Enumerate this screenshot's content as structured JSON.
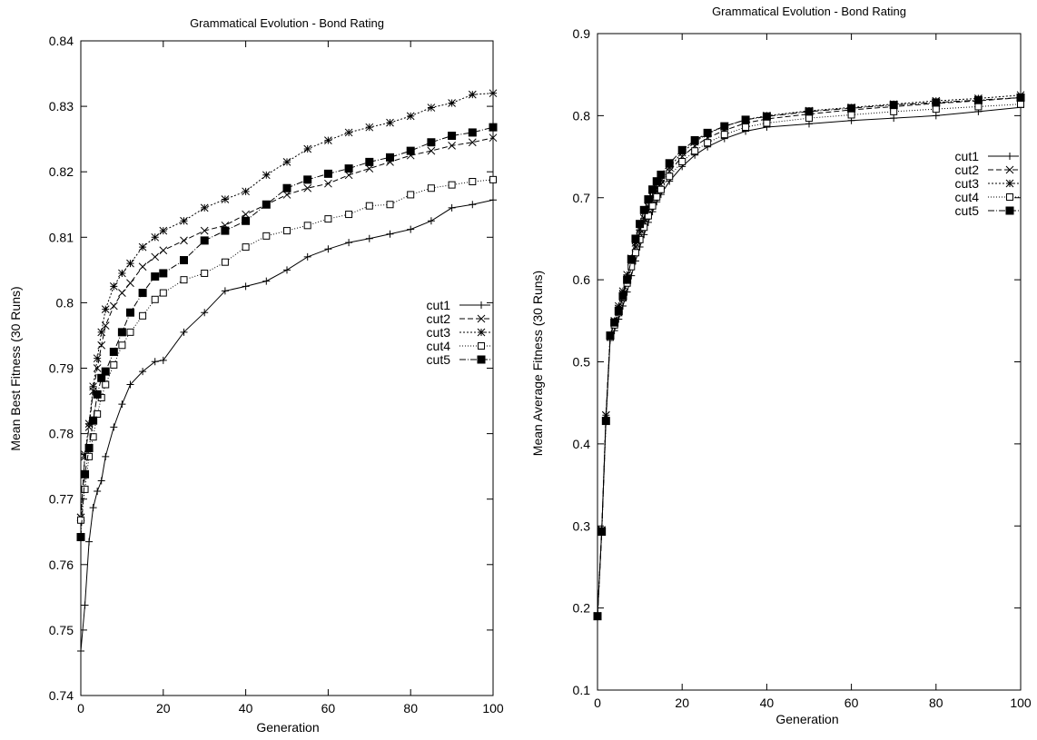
{
  "chart_data": [
    {
      "type": "line",
      "title": "Grammatical Evolution - Bond Rating",
      "xlabel": "Generation",
      "ylabel": "Mean Best Fitness (30 Runs)",
      "xlim": [
        0,
        100
      ],
      "ylim": [
        0.74,
        0.84
      ],
      "xticks": [
        0,
        20,
        40,
        60,
        80,
        100
      ],
      "xtick_labels": [
        "0",
        "20",
        "40",
        "60",
        "80",
        "100"
      ],
      "yticks": [
        0.74,
        0.75,
        0.76,
        0.77,
        0.78,
        0.79,
        0.8,
        0.81,
        0.82,
        0.83,
        0.84
      ],
      "ytick_labels": [
        "0.74",
        "0.75",
        "0.76",
        "0.77",
        "0.78",
        "0.79",
        "0.8",
        "0.81",
        "0.82",
        "0.83",
        "0.84"
      ],
      "grid": false,
      "legend_position": "right-middle",
      "x": [
        0,
        1,
        2,
        3,
        4,
        5,
        6,
        8,
        10,
        12,
        15,
        18,
        20,
        25,
        30,
        35,
        40,
        45,
        50,
        55,
        60,
        65,
        70,
        75,
        80,
        85,
        90,
        95,
        100
      ],
      "series": [
        {
          "name": "cut1",
          "marker": "plus",
          "dash": "",
          "values": [
            0.7468,
            0.7538,
            0.7635,
            0.7687,
            0.7712,
            0.7728,
            0.7765,
            0.781,
            0.7845,
            0.7875,
            0.7895,
            0.791,
            0.7912,
            0.7955,
            0.7985,
            0.8018,
            0.8025,
            0.8033,
            0.805,
            0.807,
            0.8082,
            0.8092,
            0.8098,
            0.8105,
            0.8112,
            0.8125,
            0.8145,
            0.815,
            0.8157
          ]
        },
        {
          "name": "cut2",
          "marker": "x",
          "dash": "6,3",
          "values": [
            0.7672,
            0.7765,
            0.781,
            0.7865,
            0.79,
            0.7935,
            0.7965,
            0.7995,
            0.8015,
            0.803,
            0.8055,
            0.807,
            0.808,
            0.8095,
            0.811,
            0.8118,
            0.8135,
            0.815,
            0.8165,
            0.8175,
            0.8182,
            0.8195,
            0.8205,
            0.8215,
            0.8225,
            0.8232,
            0.824,
            0.8245,
            0.8252
          ]
        },
        {
          "name": "cut3",
          "marker": "star",
          "dash": "2,2",
          "values": [
            0.7672,
            0.7768,
            0.7815,
            0.7872,
            0.7915,
            0.7955,
            0.799,
            0.8025,
            0.8045,
            0.806,
            0.8085,
            0.81,
            0.811,
            0.8125,
            0.8145,
            0.8158,
            0.817,
            0.8195,
            0.8215,
            0.8235,
            0.8248,
            0.826,
            0.8268,
            0.8275,
            0.8285,
            0.8298,
            0.8305,
            0.8318,
            0.832
          ]
        },
        {
          "name": "cut4",
          "marker": "square-open",
          "dash": "1,2",
          "values": [
            0.7668,
            0.7715,
            0.7765,
            0.7795,
            0.783,
            0.7855,
            0.7875,
            0.7905,
            0.7935,
            0.7955,
            0.798,
            0.8005,
            0.8015,
            0.8035,
            0.8045,
            0.8062,
            0.8085,
            0.8102,
            0.811,
            0.8118,
            0.8128,
            0.8135,
            0.8148,
            0.815,
            0.8165,
            0.8175,
            0.818,
            0.8185,
            0.8188
          ]
        },
        {
          "name": "cut5",
          "marker": "square-filled",
          "dash": "7,2,1,2",
          "values": [
            0.7642,
            0.7738,
            0.7778,
            0.782,
            0.786,
            0.7885,
            0.7895,
            0.7925,
            0.7955,
            0.7985,
            0.8015,
            0.804,
            0.8045,
            0.8065,
            0.8095,
            0.811,
            0.8125,
            0.815,
            0.8175,
            0.8188,
            0.8197,
            0.8205,
            0.8215,
            0.8222,
            0.8232,
            0.8245,
            0.8255,
            0.826,
            0.8268
          ]
        }
      ]
    },
    {
      "type": "line",
      "title": "Grammatical Evolution - Bond Rating",
      "xlabel": "Generation",
      "ylabel": "Mean Average Fitness (30 Runs)",
      "xlim": [
        0,
        100
      ],
      "ylim": [
        0.1,
        0.9
      ],
      "xticks": [
        0,
        20,
        40,
        60,
        80,
        100
      ],
      "xtick_labels": [
        "0",
        "20",
        "40",
        "60",
        "80",
        "100"
      ],
      "yticks": [
        0.1,
        0.2,
        0.3,
        0.4,
        0.5,
        0.6,
        0.7,
        0.8,
        0.9
      ],
      "ytick_labels": [
        "0.1",
        "0.2",
        "0.3",
        "0.4",
        "0.5",
        "0.6",
        "0.7",
        "0.8",
        "0.9"
      ],
      "grid": false,
      "legend_position": "top-right",
      "x": [
        0,
        1,
        2,
        3,
        4,
        5,
        6,
        7,
        8,
        9,
        10,
        11,
        12,
        13,
        14,
        15,
        17,
        20,
        23,
        26,
        30,
        35,
        40,
        50,
        60,
        70,
        80,
        90,
        100
      ],
      "series": [
        {
          "name": "cut1",
          "marker": "plus",
          "dash": "",
          "values": [
            0.19,
            0.295,
            0.43,
            0.528,
            0.538,
            0.552,
            0.568,
            0.585,
            0.605,
            0.623,
            0.64,
            0.655,
            0.67,
            0.683,
            0.695,
            0.704,
            0.72,
            0.738,
            0.752,
            0.762,
            0.772,
            0.781,
            0.786,
            0.79,
            0.794,
            0.797,
            0.8,
            0.805,
            0.81
          ]
        },
        {
          "name": "cut2",
          "marker": "x",
          "dash": "6,3",
          "values": [
            0.19,
            0.295,
            0.435,
            0.532,
            0.548,
            0.565,
            0.583,
            0.602,
            0.622,
            0.64,
            0.656,
            0.67,
            0.684,
            0.696,
            0.707,
            0.716,
            0.732,
            0.75,
            0.763,
            0.773,
            0.782,
            0.791,
            0.796,
            0.802,
            0.807,
            0.811,
            0.815,
            0.818,
            0.822
          ]
        },
        {
          "name": "cut3",
          "marker": "star",
          "dash": "2,2",
          "values": [
            0.19,
            0.295,
            0.435,
            0.532,
            0.55,
            0.568,
            0.586,
            0.606,
            0.626,
            0.645,
            0.661,
            0.675,
            0.689,
            0.701,
            0.712,
            0.721,
            0.737,
            0.755,
            0.768,
            0.778,
            0.787,
            0.795,
            0.8,
            0.806,
            0.81,
            0.814,
            0.818,
            0.821,
            0.825
          ]
        },
        {
          "name": "cut4",
          "marker": "square-open",
          "dash": "1,2",
          "values": [
            0.19,
            0.294,
            0.428,
            0.53,
            0.545,
            0.56,
            0.578,
            0.596,
            0.616,
            0.633,
            0.649,
            0.664,
            0.678,
            0.69,
            0.701,
            0.71,
            0.726,
            0.744,
            0.757,
            0.767,
            0.777,
            0.786,
            0.791,
            0.797,
            0.801,
            0.805,
            0.808,
            0.811,
            0.814
          ]
        },
        {
          "name": "cut5",
          "marker": "square-filled",
          "dash": "7,2,1,2",
          "values": [
            0.19,
            0.293,
            0.428,
            0.532,
            0.548,
            0.562,
            0.58,
            0.6,
            0.625,
            0.65,
            0.668,
            0.685,
            0.698,
            0.71,
            0.72,
            0.728,
            0.742,
            0.758,
            0.77,
            0.779,
            0.787,
            0.795,
            0.799,
            0.805,
            0.809,
            0.813,
            0.816,
            0.819,
            0.822
          ]
        }
      ]
    }
  ]
}
